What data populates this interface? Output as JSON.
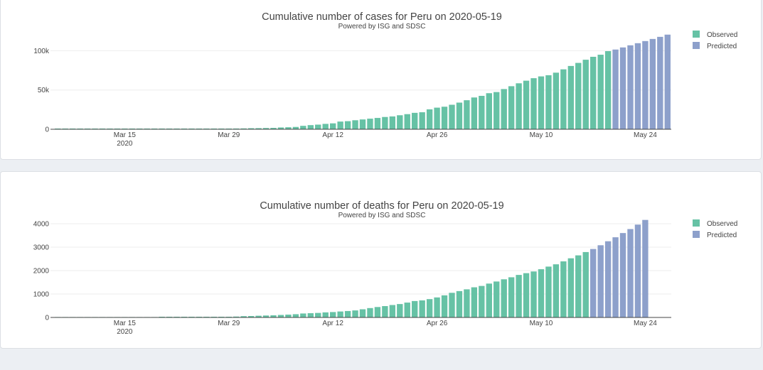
{
  "colors": {
    "observed": "#66c2a5",
    "predicted": "#8da0cb",
    "grid": "#eeeeee",
    "text": "#444444"
  },
  "chart_data": [
    {
      "type": "bar",
      "title": "Cumulative number of cases for Peru on 2020-05-19",
      "subtitle": "Powered by ISG and SDSC",
      "x_tick_labels": [
        "Mar 15",
        "Mar 29",
        "Apr 12",
        "Apr 26",
        "May 10",
        "May 24"
      ],
      "x_tick_sublabel": "2020",
      "y_ticks": [
        0,
        50000,
        100000
      ],
      "y_tick_labels": [
        "0",
        "50k",
        "100k"
      ],
      "ylim": [
        0,
        123000
      ],
      "legend": [
        {
          "name": "Observed",
          "color": "#66c2a5"
        },
        {
          "name": "Predicted",
          "color": "#8da0cb"
        }
      ],
      "legend_position": "top-right",
      "grid": true,
      "series": [
        {
          "name": "Observed",
          "start_date": "2020-03-06",
          "values": [
            1,
            6,
            7,
            9,
            11,
            17,
            22,
            38,
            43,
            71,
            86,
            117,
            145,
            234,
            263,
            318,
            363,
            395,
            416,
            480,
            580,
            635,
            671,
            852,
            950,
            1065,
            1323,
            1414,
            1595,
            1746,
            2281,
            2561,
            2954,
            4342,
            5256,
            5897,
            6848,
            7519,
            9784,
            10303,
            11475,
            12491,
            13489,
            14420,
            15628,
            16325,
            17837,
            19250,
            20914,
            21648,
            25331,
            27517,
            28699,
            31190,
            33931,
            36976,
            40459,
            42534,
            45928,
            47372,
            51189,
            54817,
            58526,
            61847,
            65015,
            67307,
            68822,
            72059,
            76306,
            80604,
            84495,
            88541,
            92273,
            94933,
            99483
          ]
        },
        {
          "name": "Predicted",
          "start_date": "2020-05-20",
          "values": [
            101500,
            104200,
            106900,
            109600,
            112300,
            115000,
            117700,
            120500
          ]
        }
      ]
    },
    {
      "type": "bar",
      "title": "Cumulative number of deaths for Peru on 2020-05-19",
      "subtitle": "Powered by ISG and SDSC",
      "x_tick_labels": [
        "Mar 15",
        "Mar 29",
        "Apr 12",
        "Apr 26",
        "May 10",
        "May 24"
      ],
      "x_tick_sublabel": "2020",
      "y_ticks": [
        0,
        1000,
        2000,
        3000,
        4000
      ],
      "y_tick_labels": [
        "0",
        "1000",
        "2000",
        "3000",
        "4000"
      ],
      "ylim": [
        0,
        4150
      ],
      "legend": [
        {
          "name": "Observed",
          "color": "#66c2a5"
        },
        {
          "name": "Predicted",
          "color": "#8da0cb"
        }
      ],
      "legend_position": "top-right",
      "grid": true,
      "series": [
        {
          "name": "Observed",
          "start_date": "2020-03-06",
          "values": [
            0,
            0,
            0,
            0,
            0,
            0,
            0,
            0,
            0,
            0,
            0,
            0,
            0,
            0,
            3,
            5,
            5,
            7,
            9,
            11,
            16,
            18,
            24,
            30,
            38,
            55,
            61,
            73,
            83,
            92,
            107,
            121,
            138,
            169,
            181,
            193,
            216,
            230,
            254,
            274,
            300,
            348,
            400,
            445,
            484,
            530,
            572,
            634,
            700,
            728,
            782,
            854,
            943,
            1051,
            1124,
            1200,
            1286,
            1344,
            1444,
            1533,
            1627,
            1714,
            1814,
            1889,
            1961,
            2057,
            2169,
            2267,
            2392,
            2523,
            2648,
            2789
          ]
        },
        {
          "name": "Predicted",
          "start_date": "2020-05-17",
          "values": [
            2920,
            3080,
            3250,
            3420,
            3600,
            3770,
            3960,
            4160
          ]
        }
      ]
    }
  ]
}
